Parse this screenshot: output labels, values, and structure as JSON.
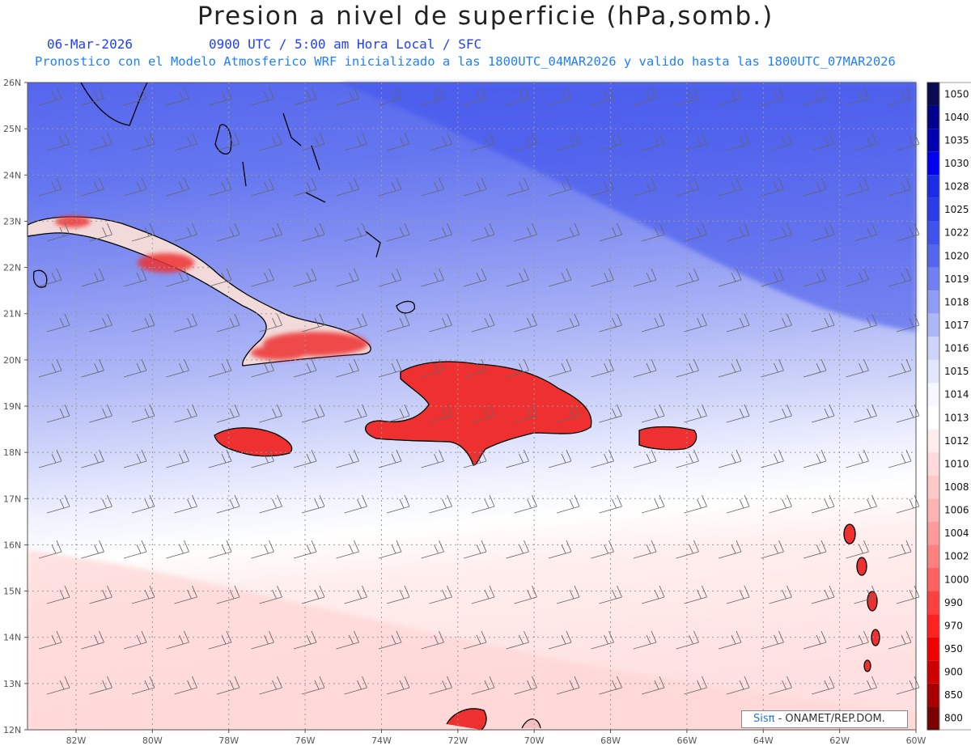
{
  "title": "Presion a nivel de superficie (hPa,somb.)",
  "date": "06-Mar-2026",
  "time_info": "0900 UTC / 5:00 am Hora Local / SFC",
  "forecast_info": "Pronostico con el Modelo Atmosferico WRF inicializado a las 1800UTC_04MAR2026 y valido hasta las  1800UTC_07MAR2026",
  "lat_labels": [
    "26N",
    "25N",
    "24N",
    "23N",
    "22N",
    "21N",
    "20N",
    "19N",
    "18N",
    "17N",
    "16N",
    "15N",
    "14N",
    "13N",
    "12N"
  ],
  "lon_labels": [
    "82W",
    "80W",
    "78W",
    "76W",
    "74W",
    "72W",
    "70W",
    "68W",
    "66W",
    "64W",
    "62W",
    "60W"
  ],
  "colorbar": {
    "levels": [
      "1050",
      "1040",
      "1035",
      "1030",
      "1028",
      "1025",
      "1022",
      "1020",
      "1019",
      "1018",
      "1017",
      "1016",
      "1015",
      "1014",
      "1013",
      "1012",
      "1010",
      "1008",
      "1006",
      "1004",
      "1002",
      "1000",
      "990",
      "970",
      "950",
      "900",
      "850",
      "800"
    ],
    "colors": [
      "#0a0a50",
      "#00008b",
      "#0000b0",
      "#0000ee",
      "#1a2ce6",
      "#2a3ce8",
      "#3f52ec",
      "#5566ee",
      "#7080f0",
      "#8f9cf3",
      "#aeb7f6",
      "#cdd3f9",
      "#e2e6fc",
      "#f6f7ff",
      "#ffffff",
      "#ffecec",
      "#ffdada",
      "#ffc8c8",
      "#ffb2b2",
      "#ff9a9a",
      "#ff8080",
      "#ff6060",
      "#ff4040",
      "#ff2020",
      "#f00000",
      "#d00000",
      "#a80000",
      "#780000"
    ]
  },
  "credit": {
    "logo": "Sisπ",
    "text": " - ONAMET/REP.DOM."
  }
}
